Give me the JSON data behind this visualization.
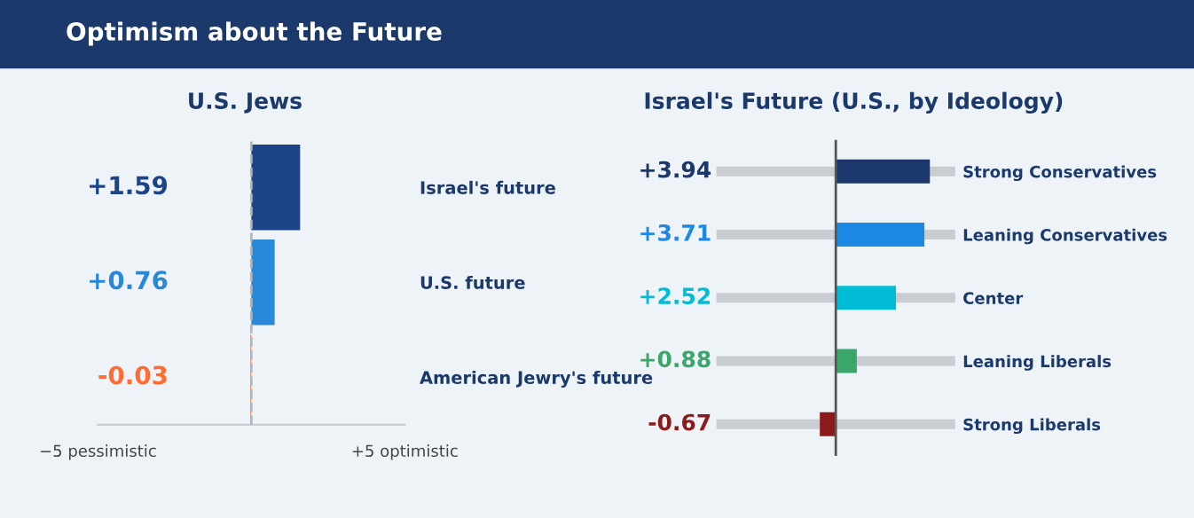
{
  "chart_data": [
    {
      "type": "bar",
      "orientation": "horizontal",
      "title": "Optimism about the Future",
      "subtitle": "U.S. Jews",
      "categories": [
        "Israel's future",
        "U.S. future",
        "American Jewry's future"
      ],
      "values": [
        1.59,
        0.76,
        -0.03
      ],
      "colors": [
        "#1c4489",
        "#2a88d8",
        "#ff6d35"
      ],
      "value_labels": [
        "+1.59",
        "+0.76",
        "-0.03"
      ],
      "xlim": [
        -5,
        5
      ],
      "xticks": [
        {
          "value": -5,
          "label": "−5 pessimistic"
        },
        {
          "value": 5,
          "label": "+5 optimistic"
        }
      ],
      "ref_lines": [
        {
          "axis": "x",
          "value": 0,
          "line_style": "dashed",
          "color": "#b0b6bd"
        }
      ]
    },
    {
      "type": "bar",
      "orientation": "horizontal",
      "title": "Israel's Future (U.S., by Ideology)",
      "categories": [
        "Strong Conservatives",
        "Leaning Conservatives",
        "Center",
        "Leaning Liberals",
        "Strong Liberals"
      ],
      "values": [
        3.94,
        3.71,
        2.52,
        0.88,
        -0.67
      ],
      "colors": [
        "#1b376b",
        "#1e88e5",
        "#00bcd4",
        "#3aa66a",
        "#8b1a1a"
      ],
      "value_labels": [
        "+3.94",
        "+3.71",
        "+2.52",
        "+0.88",
        "-0.67"
      ],
      "xlim": [
        -5,
        5
      ],
      "tick_labels": "y",
      "grid": "y",
      "ref_lines": [
        {
          "axis": "x",
          "value": 0,
          "line_style": "solid",
          "color": "#555555"
        }
      ]
    }
  ]
}
